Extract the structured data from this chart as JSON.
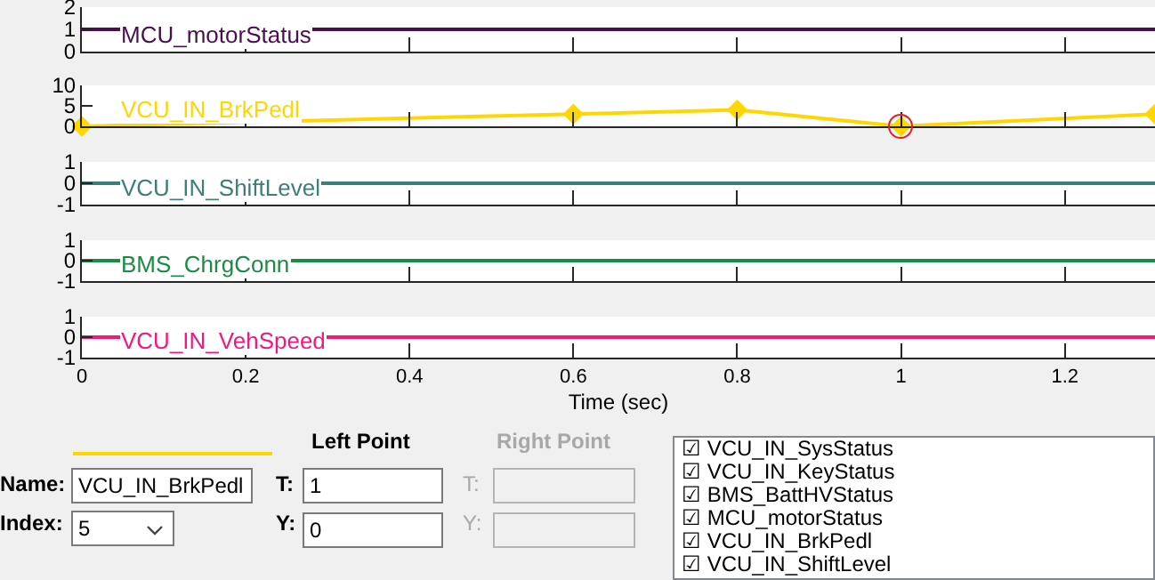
{
  "chart_data": [
    {
      "type": "line",
      "x": [
        0,
        1.31
      ],
      "xlim": [
        0,
        1.31
      ],
      "xticks": [
        0,
        0.2,
        0.4,
        0.6,
        0.8,
        1,
        1.2
      ],
      "ylim": [
        0,
        2
      ],
      "yticks": [
        0,
        1,
        2
      ],
      "tick_labels": "y",
      "grid": false,
      "legend": false,
      "series": [
        {
          "name": "MCU_motorStatus",
          "color": "#4b0f4f",
          "values": [
            1,
            1
          ]
        }
      ]
    },
    {
      "type": "line",
      "x": [
        0,
        0.6,
        0.8,
        1,
        1.31
      ],
      "xlim": [
        0,
        1.31
      ],
      "xticks": [
        0,
        0.2,
        0.4,
        0.6,
        0.8,
        1,
        1.2
      ],
      "ylim": [
        0,
        10
      ],
      "yticks": [
        0,
        5,
        10
      ],
      "tick_labels": "y",
      "grid": false,
      "legend": false,
      "marker": "diamond",
      "series": [
        {
          "name": "VCU_IN_BrkPedl",
          "color": "#ffd700",
          "values": [
            0,
            3,
            4,
            0,
            3
          ]
        }
      ]
    },
    {
      "type": "line",
      "x": [
        0,
        1.31
      ],
      "xlim": [
        0,
        1.31
      ],
      "xticks": [
        0,
        0.2,
        0.4,
        0.6,
        0.8,
        1,
        1.2
      ],
      "ylim": [
        -1,
        1
      ],
      "yticks": [
        -1,
        0,
        1
      ],
      "tick_labels": "y",
      "grid": false,
      "legend": false,
      "series": [
        {
          "name": "VCU_IN_ShiftLevel",
          "color": "#3d7f77",
          "values": [
            0,
            0
          ]
        }
      ]
    },
    {
      "type": "line",
      "x": [
        0,
        1.31
      ],
      "xlim": [
        0,
        1.31
      ],
      "xticks": [
        0,
        0.2,
        0.4,
        0.6,
        0.8,
        1,
        1.2
      ],
      "ylim": [
        -1,
        1
      ],
      "yticks": [
        -1,
        0,
        1
      ],
      "tick_labels": "y",
      "grid": false,
      "legend": false,
      "series": [
        {
          "name": "BMS_ChrgConn",
          "color": "#1b8c44",
          "values": [
            0,
            0
          ]
        }
      ]
    },
    {
      "type": "line",
      "x": [
        0,
        1.31
      ],
      "xlim": [
        0,
        1.31
      ],
      "xticks": [
        0,
        0.2,
        0.4,
        0.6,
        0.8,
        1,
        1.2
      ],
      "ylim": [
        -1,
        1
      ],
      "yticks": [
        -1,
        0,
        1
      ],
      "xlabel": "Time (sec)",
      "grid": false,
      "legend": false,
      "series": [
        {
          "name": "VCU_IN_VehSpeed",
          "color": "#f0197d",
          "values": [
            0,
            0
          ]
        }
      ]
    },
    {
      "type": "other",
      "annotations": [
        "Left Point",
        "Right Point",
        "Name:",
        "VCU_IN_BrkPedl",
        "T:",
        "1",
        "T:",
        "Index:",
        "5",
        "Y:",
        "0",
        "Y:",
        "☑ VCU_IN_SysStatus",
        "☑ VCU_IN_KeyStatus",
        "☑ BMS_BattHVStatus",
        "☑ MCU_motorStatus",
        "☑ VCU_IN_BrkPedl",
        "☑ VCU_IN_ShiftLevel"
      ]
    }
  ]
}
